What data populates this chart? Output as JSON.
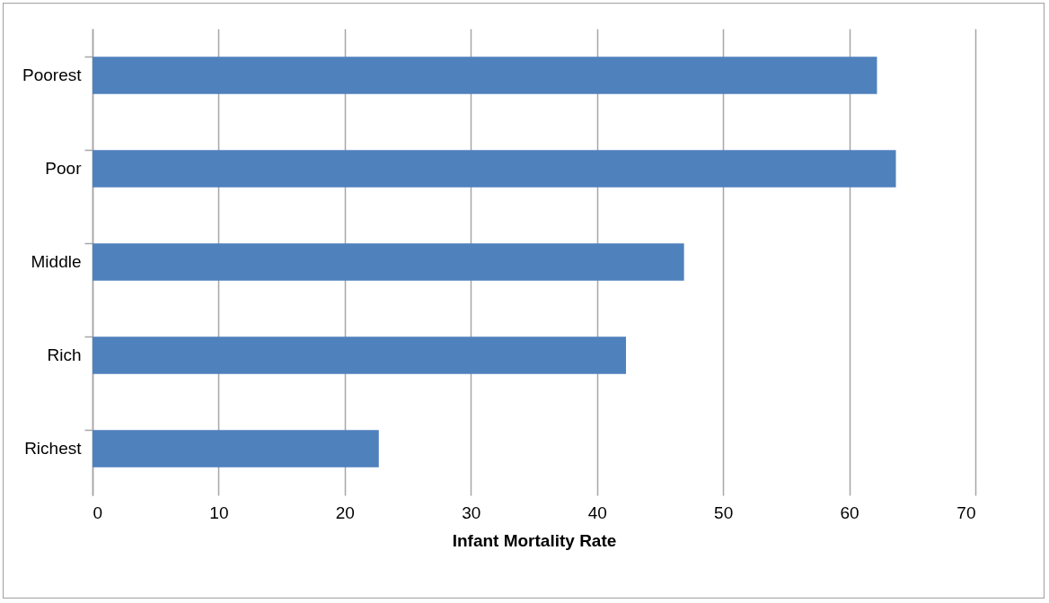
{
  "chart_data": {
    "type": "bar",
    "orientation": "horizontal",
    "xlabel": "Infant Mortality Rate",
    "categories": [
      "Poorest",
      "Poor",
      "Middle",
      "Rich",
      "Richest"
    ],
    "values": [
      62.2,
      63.7,
      46.9,
      42.3,
      22.7
    ],
    "color": "#4f81bd",
    "xlim": [
      0,
      70
    ],
    "xticks": [
      0,
      10,
      20,
      30,
      40,
      50,
      60,
      70
    ],
    "grid": "x"
  }
}
